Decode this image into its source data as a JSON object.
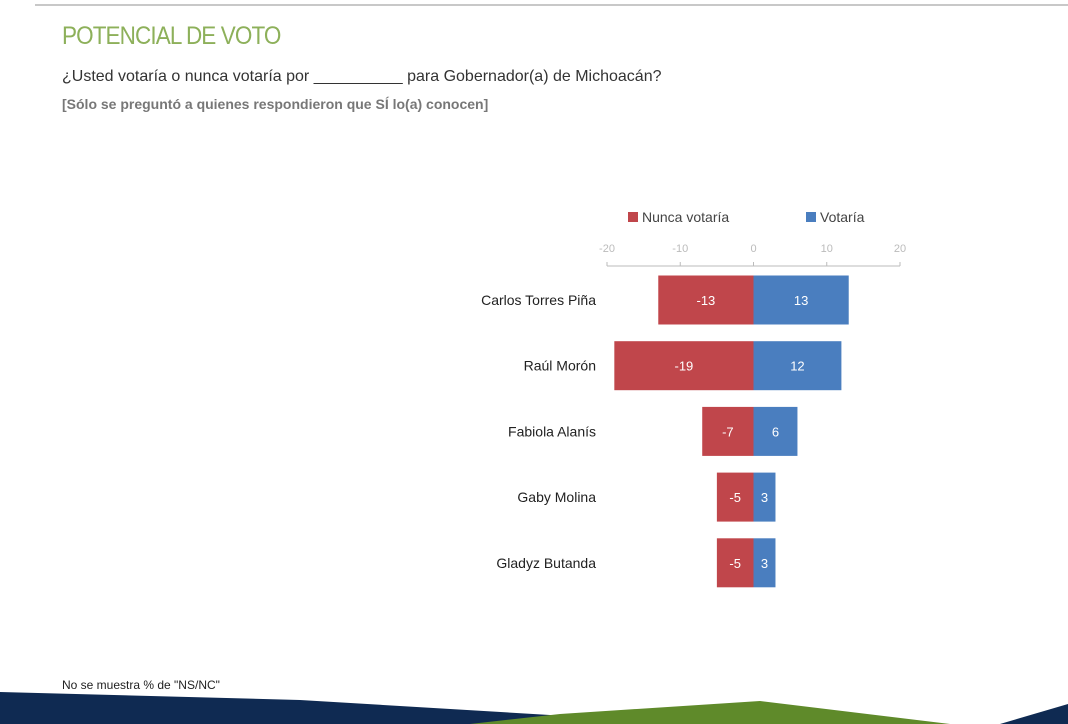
{
  "header": {
    "title": "POTENCIAL DE VOTO",
    "question": "¿Usted votaría o nunca votaría por __________ para Gobernador(a) de Michoacán?",
    "note": "[Sólo se preguntó a quienes respondieron que SÍ lo(a) conocen]"
  },
  "footnote": "No se muestra % de \"NS/NC\"",
  "chart_data": {
    "type": "bar",
    "orientation": "horizontal-diverging",
    "categories": [
      "Carlos Torres Piña",
      "Raúl Morón",
      "Fabiola Alanís",
      "Gaby Molina",
      "Gladyz Butanda"
    ],
    "series": [
      {
        "name": "Nunca votaría",
        "color": "#c0464b",
        "values": [
          -13,
          -19,
          -7,
          -5,
          -5
        ]
      },
      {
        "name": "Votaría",
        "color": "#4a7ebf",
        "values": [
          13,
          12,
          6,
          3,
          3
        ]
      }
    ],
    "xlim": [
      -20,
      20
    ],
    "xticks": [
      -20,
      -10,
      0,
      10,
      20
    ],
    "axis_position": "top",
    "legend": "top",
    "grid": false,
    "data_labels": true
  },
  "colors": {
    "title_green": "#8db05a",
    "navy": "#0f2a52",
    "green": "#5f8a2a"
  }
}
